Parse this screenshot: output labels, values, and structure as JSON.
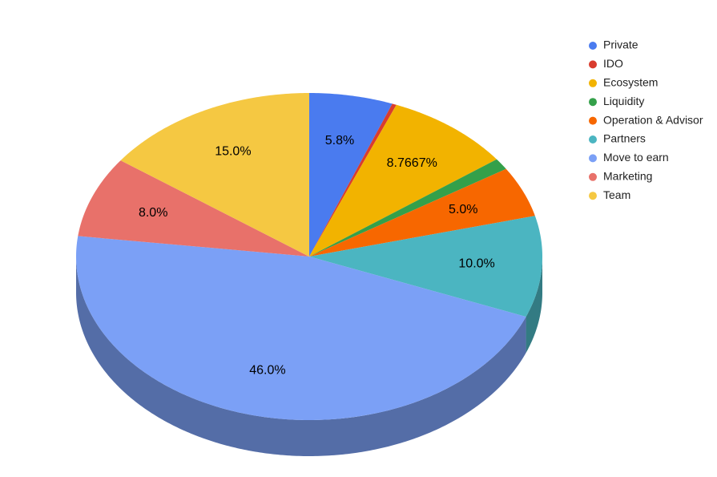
{
  "chart_data": {
    "type": "pie3d",
    "categories": [
      "Private",
      "IDO",
      "Ecosystem",
      "Liquidity",
      "Operation & Advisor",
      "Partners",
      "Move to earn",
      "Marketing",
      "Team"
    ],
    "values": [
      5.8,
      0.3,
      8.7667,
      1.1333,
      5.0,
      10.0,
      46.0,
      8.0,
      15.0
    ],
    "value_labels": [
      "5.8%",
      null,
      "8.7667%",
      null,
      "5.0%",
      "10.0%",
      "46.0%",
      "8.0%",
      "15.0%"
    ],
    "colors": [
      "#4a7bef",
      "#d93c2e",
      "#f2b300",
      "#34a04a",
      "#f76700",
      "#4bb5c1",
      "#7ba0f6",
      "#e8716a",
      "#f5c842"
    ],
    "legend": "right"
  }
}
